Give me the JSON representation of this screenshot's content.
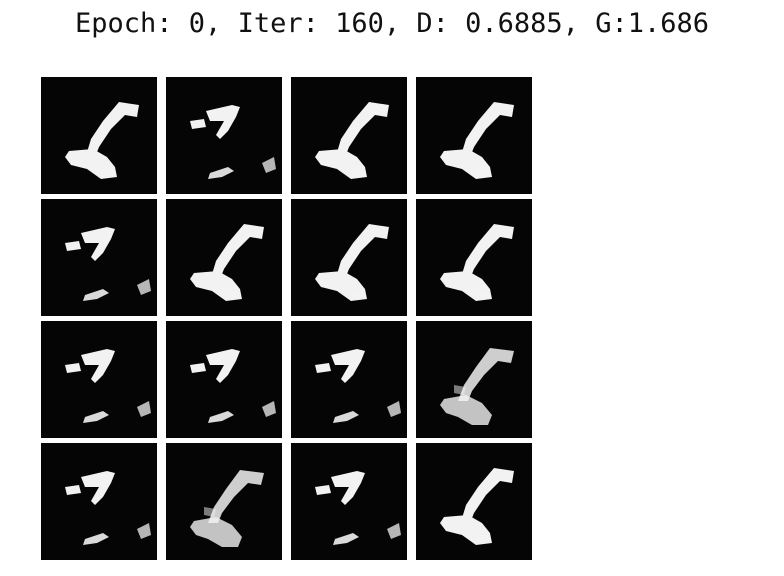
{
  "title": "Epoch: 0, Iter: 160, D: 0.6885, G:1.686",
  "grid": {
    "rows": 4,
    "cols": 4,
    "tiles": [
      {
        "shape": "L"
      },
      {
        "shape": "seven"
      },
      {
        "shape": "L"
      },
      {
        "shape": "L"
      },
      {
        "shape": "seven"
      },
      {
        "shape": "L"
      },
      {
        "shape": "L"
      },
      {
        "shape": "L"
      },
      {
        "shape": "seven"
      },
      {
        "shape": "seven"
      },
      {
        "shape": "seven"
      },
      {
        "shape": "L-blur"
      },
      {
        "shape": "seven"
      },
      {
        "shape": "L-blur"
      },
      {
        "shape": "seven"
      },
      {
        "shape": "L"
      }
    ]
  },
  "colors": {
    "background": "#ffffff",
    "tile": "#050505",
    "digit": "#f2f2f2"
  }
}
